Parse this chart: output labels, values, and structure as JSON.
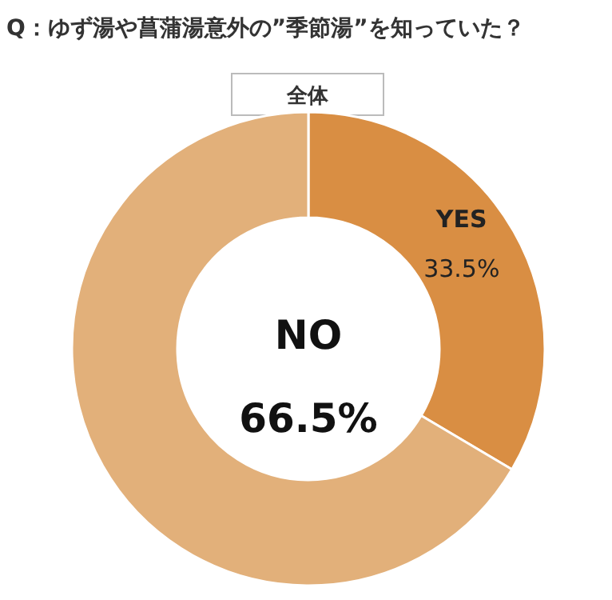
{
  "chart_data": {
    "type": "donut",
    "title": "Q：ゆず湯や菖蒲湯意外の”季節湯”を知っていた？",
    "subtitle": "全体",
    "categories": [
      "YES",
      "NO"
    ],
    "values": [
      33.5,
      66.5
    ],
    "colors": [
      "#d98e43",
      "#e2b07a"
    ],
    "value_labels": [
      "33.5%",
      "66.5%"
    ]
  }
}
